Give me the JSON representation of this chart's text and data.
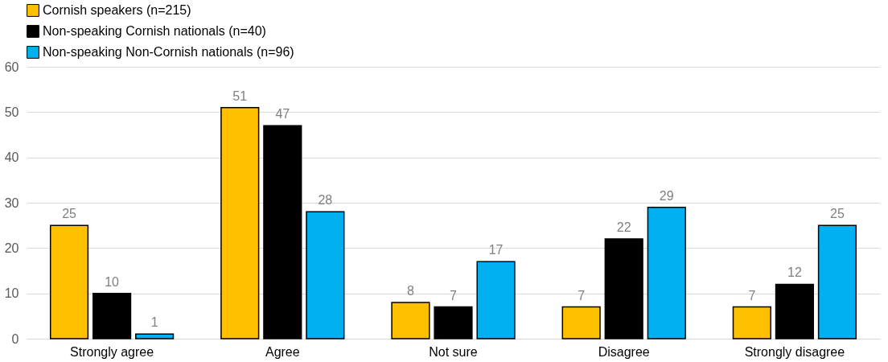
{
  "chart_data": {
    "type": "bar",
    "categories": [
      "Strongly agree",
      "Agree",
      "Not sure",
      "Disagree",
      "Strongly disagree"
    ],
    "series": [
      {
        "name": "Cornish speakers (n=215)",
        "color": "#ffc000",
        "values": [
          25,
          51,
          8,
          7,
          7
        ]
      },
      {
        "name": "Non-speaking Cornish nationals (n=40)",
        "color": "#000000",
        "values": [
          10,
          47,
          7,
          22,
          12
        ]
      },
      {
        "name": "Non-speaking Non-Cornish nationals (n=96)",
        "color": "#00b0f0",
        "values": [
          1,
          28,
          17,
          29,
          25
        ]
      }
    ],
    "ylim": [
      0,
      60
    ],
    "yticks": [
      0,
      10,
      20,
      30,
      40,
      50,
      60
    ],
    "grid": "y",
    "legend": "top",
    "data_labels": true
  }
}
